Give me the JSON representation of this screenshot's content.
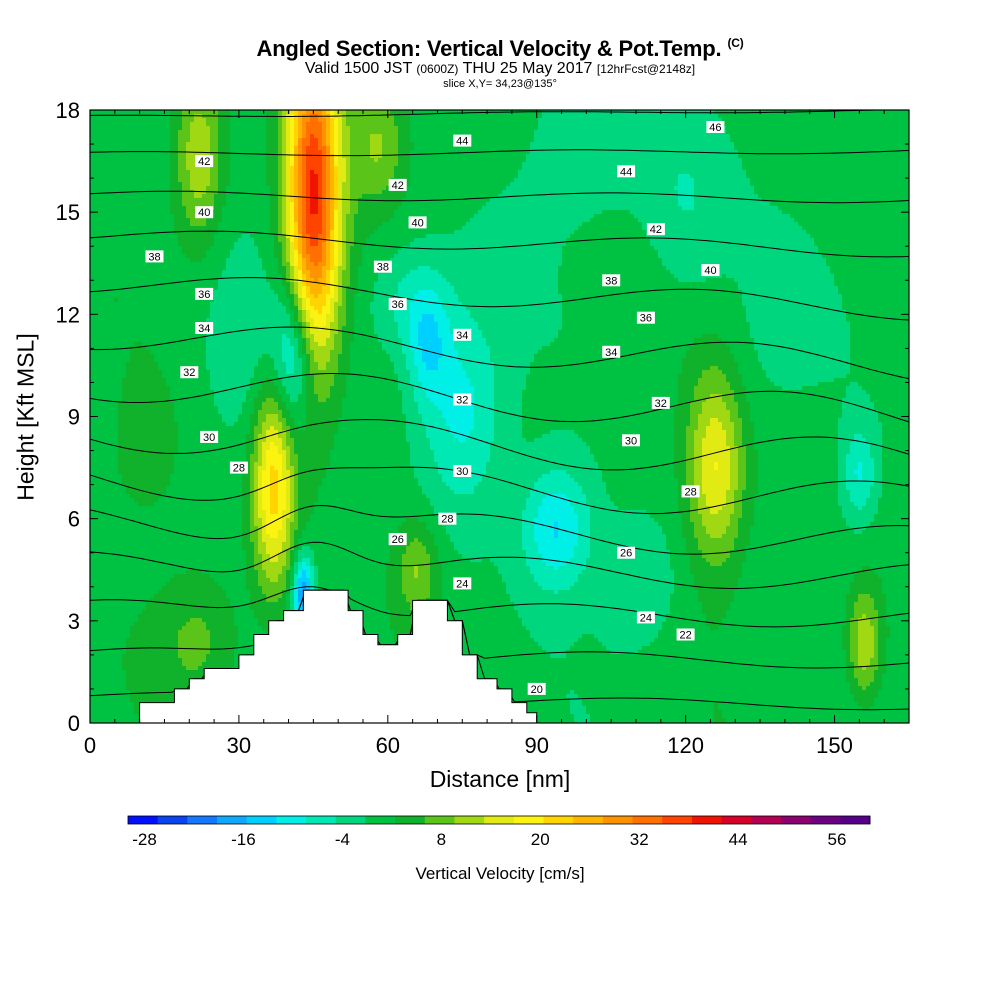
{
  "header": {
    "title": "Angled Section: Vertical Velocity & Pot.Temp.",
    "title_tag": "(C)",
    "valid_prefix": "Valid 1500 JST",
    "valid_utc": "(0600Z)",
    "valid_suffix": "THU 25 May 2017",
    "forecast": "[12hrFcst@2148z]",
    "slice": "slice X,Y= 34,23@135°"
  },
  "chart_data": {
    "type": "heatmap",
    "xlabel": "Distance [nm]",
    "ylabel": "Height [Kft MSL]",
    "xlim": [
      0,
      165
    ],
    "ylim": [
      0,
      18
    ],
    "x_ticks": [
      0,
      30,
      60,
      90,
      120,
      150
    ],
    "y_ticks": [
      0,
      3,
      6,
      9,
      12,
      15,
      18
    ],
    "colorbar": {
      "label": "Vertical Velocity [cm/s]",
      "tick_labels": [
        "-28",
        "-16",
        "-4",
        "8",
        "20",
        "32",
        "44",
        "56"
      ],
      "tick_values": [
        -28,
        -16,
        -4,
        8,
        20,
        32,
        44,
        56
      ],
      "min": -30,
      "max": 60,
      "step": 4,
      "colors": [
        "#0010ff",
        "#0844f0",
        "#1478ff",
        "#10a8ff",
        "#00d0ff",
        "#00f0e8",
        "#00e8b4",
        "#00d67e",
        "#00c242",
        "#10b22c",
        "#5ac418",
        "#a0d814",
        "#e2ea14",
        "#fcf410",
        "#ffd400",
        "#ffb400",
        "#ff9200",
        "#ff7000",
        "#ff4400",
        "#f01400",
        "#d80028",
        "#b40052",
        "#8c0070",
        "#6c0082",
        "#56008a"
      ]
    },
    "terrain_profile": [
      [
        0,
        0
      ],
      [
        10,
        0
      ],
      [
        10,
        0.6
      ],
      [
        17,
        0.6
      ],
      [
        17,
        1
      ],
      [
        20,
        1
      ],
      [
        20,
        1.3
      ],
      [
        23,
        1.3
      ],
      [
        23,
        1.6
      ],
      [
        30,
        1.6
      ],
      [
        30,
        2
      ],
      [
        33,
        2
      ],
      [
        33,
        2.6
      ],
      [
        36,
        2.6
      ],
      [
        36,
        3
      ],
      [
        39,
        3
      ],
      [
        39,
        3.3
      ],
      [
        43,
        3.3
      ],
      [
        43,
        3.9
      ],
      [
        52,
        3.9
      ],
      [
        52,
        3.3
      ],
      [
        55,
        3.3
      ],
      [
        55,
        2.6
      ],
      [
        58,
        2.6
      ],
      [
        58,
        2.3
      ],
      [
        62,
        2.3
      ],
      [
        62,
        2.6
      ],
      [
        65,
        2.6
      ],
      [
        65,
        3.6
      ],
      [
        72,
        3.6
      ],
      [
        72,
        3
      ],
      [
        75,
        3
      ],
      [
        75,
        2
      ],
      [
        78,
        2
      ],
      [
        78,
        1.3
      ],
      [
        82,
        1.3
      ],
      [
        82,
        1
      ],
      [
        85,
        1
      ],
      [
        85,
        0.6
      ],
      [
        88,
        0.6
      ],
      [
        88,
        0.3
      ],
      [
        90,
        0.3
      ],
      [
        90,
        0
      ],
      [
        165,
        0
      ]
    ],
    "updrafts": [
      {
        "x": 45,
        "y": 15.5,
        "sx": 3.8,
        "sy": 3.6,
        "w": 42
      },
      {
        "x": 37,
        "y": 7,
        "sx": 3,
        "sy": 2.2,
        "w": 24
      },
      {
        "x": 22,
        "y": 16.5,
        "sx": 3.5,
        "sy": 1.8,
        "w": 14
      },
      {
        "x": 58,
        "y": 17,
        "sx": 4,
        "sy": 1.2,
        "w": 10
      },
      {
        "x": 126,
        "y": 7.5,
        "sx": 4,
        "sy": 2,
        "w": 18
      },
      {
        "x": 156,
        "y": 2.3,
        "sx": 2.5,
        "sy": 1.2,
        "w": 14
      },
      {
        "x": 66,
        "y": 4.5,
        "sx": 3,
        "sy": 1,
        "w": 10
      },
      {
        "x": 22,
        "y": 2.5,
        "sx": 6,
        "sy": 1.4,
        "w": 7
      },
      {
        "x": 11,
        "y": 8,
        "sx": 4,
        "sy": 1.2,
        "w": 5
      }
    ],
    "downdrafts": [
      {
        "x": 41,
        "y": 10.8,
        "sx": 3,
        "sy": 1.6,
        "w": -16
      },
      {
        "x": 43,
        "y": 3.8,
        "sx": 1.5,
        "sy": 0.8,
        "w": -22
      },
      {
        "x": 75,
        "y": 9.2,
        "sx": 6,
        "sy": 2.2,
        "w": -12
      },
      {
        "x": 68,
        "y": 11,
        "sx": 3,
        "sy": 1.2,
        "w": -10
      },
      {
        "x": 94,
        "y": 5.7,
        "sx": 5,
        "sy": 1.3,
        "w": -14
      },
      {
        "x": 64,
        "y": 12.4,
        "sx": 6,
        "sy": 1.2,
        "w": -8
      },
      {
        "x": 155,
        "y": 7.3,
        "sx": 2.5,
        "sy": 1,
        "w": -10
      },
      {
        "x": 111,
        "y": 4,
        "sx": 6,
        "sy": 1.5,
        "w": -6
      },
      {
        "x": 120,
        "y": 15,
        "sx": 6,
        "sy": 2,
        "w": -6
      },
      {
        "x": 103,
        "y": 17,
        "sx": 10,
        "sy": 2,
        "w": -5
      },
      {
        "x": 30,
        "y": 10.5,
        "sx": 6,
        "sy": 2,
        "w": -4
      },
      {
        "x": 135,
        "y": 11,
        "sx": 8,
        "sy": 2,
        "w": -3
      }
    ],
    "isentropes": {
      "values": [
        20,
        22,
        24,
        26,
        28,
        30,
        32,
        34,
        36,
        38,
        40,
        42,
        44,
        46
      ],
      "heights_at_left": [
        0.8,
        2.0,
        3.3,
        4.6,
        5.9,
        7.2,
        8.6,
        10.0,
        11.4,
        12.9,
        14.3,
        15.5,
        16.7,
        17.8
      ],
      "heights_at_right": [
        0.5,
        1.8,
        3.1,
        4.3,
        5.3,
        6.5,
        7.7,
        9.0,
        10.5,
        12.2,
        13.9,
        15.4,
        16.8,
        18.0
      ]
    },
    "contour_labels": [
      {
        "text": "42",
        "x": 23,
        "y": 16.5
      },
      {
        "text": "40",
        "x": 23,
        "y": 15
      },
      {
        "text": "38",
        "x": 13,
        "y": 13.7
      },
      {
        "text": "36",
        "x": 23,
        "y": 12.6
      },
      {
        "text": "34",
        "x": 23,
        "y": 11.6
      },
      {
        "text": "32",
        "x": 20,
        "y": 10.3
      },
      {
        "text": "30",
        "x": 24,
        "y": 8.4
      },
      {
        "text": "28",
        "x": 30,
        "y": 7.5
      },
      {
        "text": "44",
        "x": 75,
        "y": 17.1
      },
      {
        "text": "42",
        "x": 62,
        "y": 15.8
      },
      {
        "text": "40",
        "x": 66,
        "y": 14.7
      },
      {
        "text": "38",
        "x": 59,
        "y": 13.4
      },
      {
        "text": "36",
        "x": 62,
        "y": 12.3
      },
      {
        "text": "34",
        "x": 75,
        "y": 11.4
      },
      {
        "text": "32",
        "x": 75,
        "y": 9.5
      },
      {
        "text": "30",
        "x": 75,
        "y": 7.4
      },
      {
        "text": "28",
        "x": 72,
        "y": 6
      },
      {
        "text": "26",
        "x": 62,
        "y": 5.4
      },
      {
        "text": "24",
        "x": 75,
        "y": 4.1
      },
      {
        "text": "22",
        "x": 120,
        "y": 2.6
      },
      {
        "text": "20",
        "x": 90,
        "y": 1
      },
      {
        "text": "46",
        "x": 126,
        "y": 17.5
      },
      {
        "text": "44",
        "x": 108,
        "y": 16.2
      },
      {
        "text": "42",
        "x": 114,
        "y": 14.5
      },
      {
        "text": "40",
        "x": 125,
        "y": 13.3
      },
      {
        "text": "38",
        "x": 105,
        "y": 13
      },
      {
        "text": "36",
        "x": 112,
        "y": 11.9
      },
      {
        "text": "34",
        "x": 105,
        "y": 10.9
      },
      {
        "text": "32",
        "x": 115,
        "y": 9.4
      },
      {
        "text": "30",
        "x": 109,
        "y": 8.3
      },
      {
        "text": "28",
        "x": 121,
        "y": 6.8
      },
      {
        "text": "26",
        "x": 108,
        "y": 5
      },
      {
        "text": "24",
        "x": 112,
        "y": 3.1
      }
    ]
  }
}
